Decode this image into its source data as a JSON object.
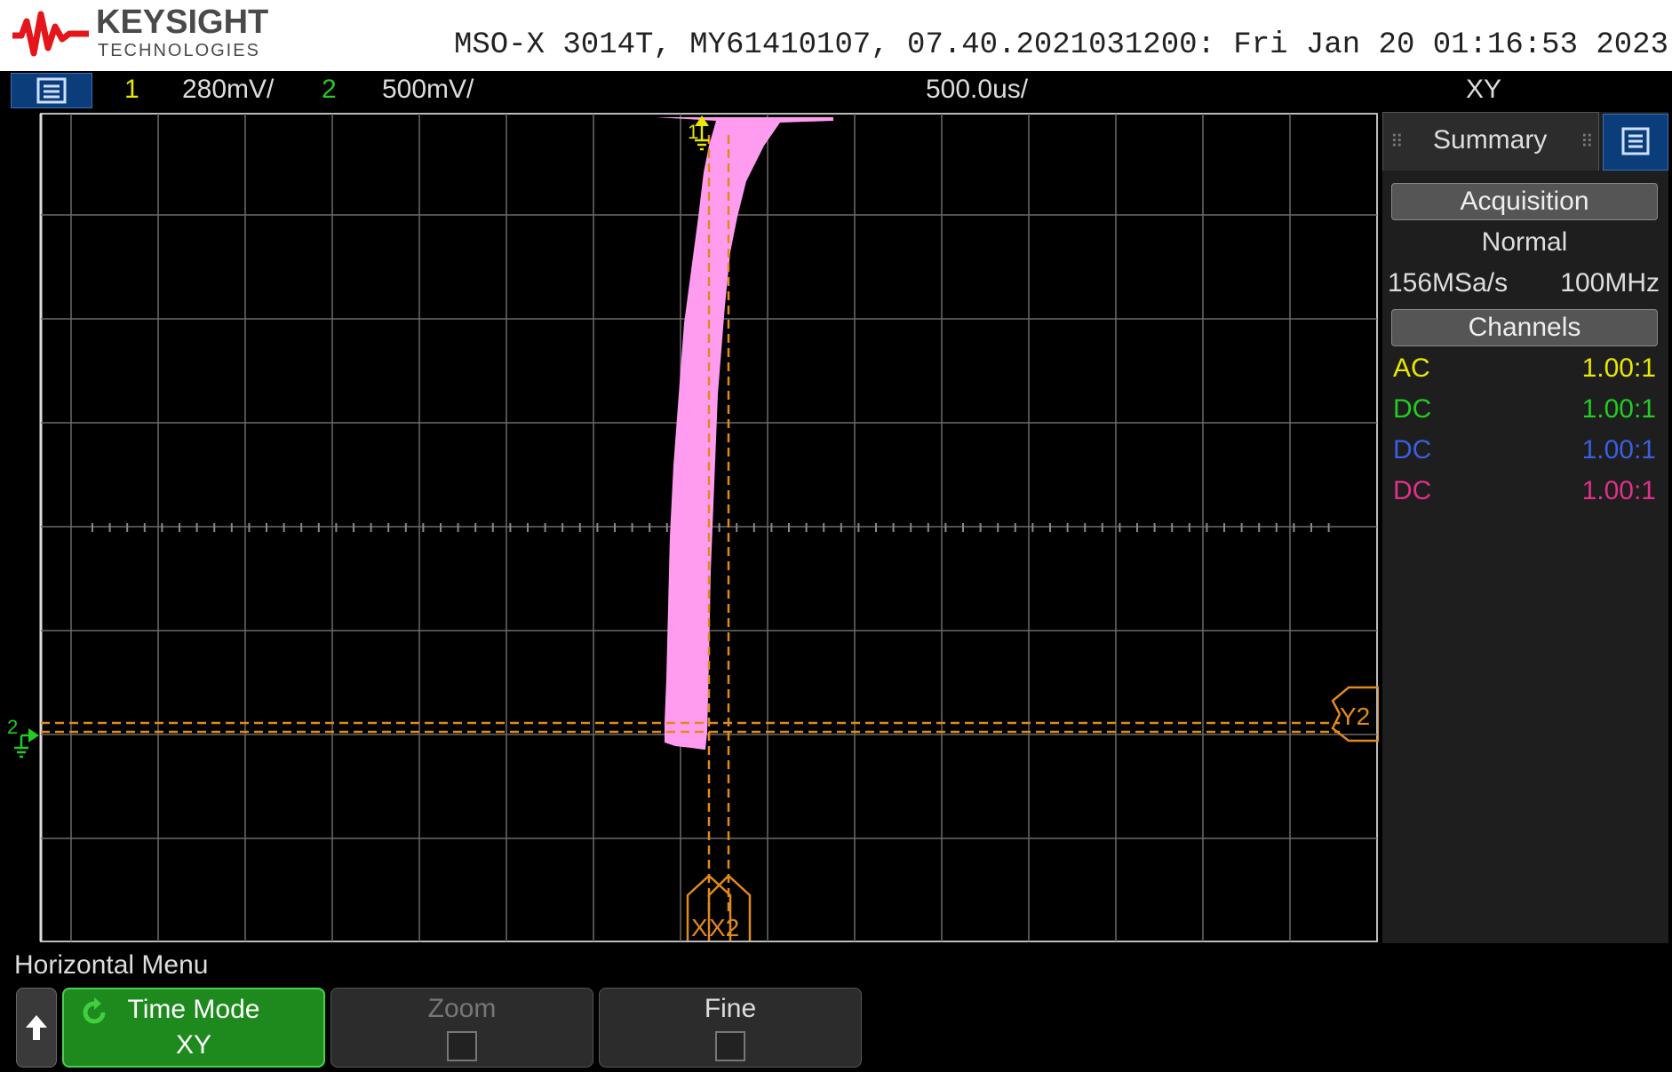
{
  "header": {
    "brand_name": "KEYSIGHT",
    "brand_sub": "TECHNOLOGIES",
    "device_info": "MSO-X 3014T, MY61410107, 07.40.2021031200: Fri Jan 20 01:16:53 2023"
  },
  "status_bar": {
    "ch1_number": "1",
    "ch1_scale": "280mV/",
    "ch2_number": "2",
    "ch2_scale": "500mV/",
    "timebase": "500.0us/",
    "mode": "XY"
  },
  "screen": {
    "ch1_marker": "1",
    "ch2_marker": "2",
    "cursor_x1_label": "X",
    "cursor_x2_label": "X2",
    "cursor_y2_label": "Y2"
  },
  "panel": {
    "tab_label": "Summary",
    "acquisition_header": "Acquisition",
    "acquisition_mode": "Normal",
    "sample_rate": "156MSa/s",
    "bandwidth": "100MHz",
    "channels_header": "Channels",
    "channels": [
      {
        "coupling": "AC",
        "ratio": "1.00:1",
        "color": "#e8e800"
      },
      {
        "coupling": "DC",
        "ratio": "1.00:1",
        "color": "#22cc22"
      },
      {
        "coupling": "DC",
        "ratio": "1.00:1",
        "color": "#3a5fe0"
      },
      {
        "coupling": "DC",
        "ratio": "1.00:1",
        "color": "#e0308a"
      }
    ]
  },
  "bottom": {
    "menu_title": "Horizontal Menu",
    "time_mode_label": "Time Mode",
    "time_mode_value": "XY",
    "zoom_label": "Zoom",
    "fine_label": "Fine"
  },
  "colors": {
    "ch1": "#e8e800",
    "ch2": "#22cc22",
    "trace": "#ff9cf0",
    "cursor": "#e08a1c",
    "softkey_active": "#1e8a1e"
  }
}
